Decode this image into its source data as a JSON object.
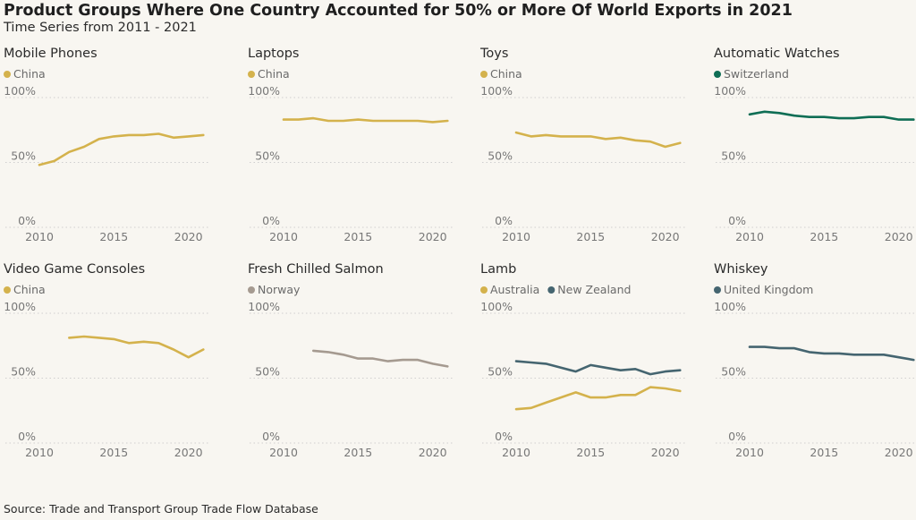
{
  "title": "Product Groups Where One Country Accounted for 50% or More Of World Exports in 2021",
  "subtitle": "Time Series from 2011 - 2021",
  "source": "Source: Trade and Transport Group Trade Flow Database",
  "colors": {
    "China": "#d4b24c",
    "Switzerland": "#0f6e55",
    "Norway": "#a59a90",
    "Australia": "#d4b24c",
    "New Zealand": "#456570",
    "United Kingdom": "#456570"
  },
  "chart_data": [
    {
      "type": "line",
      "title": "Mobile Phones",
      "ylim": [
        0,
        100
      ],
      "yticks": [
        "0%",
        "50%",
        "100%"
      ],
      "xticks": [
        "2010",
        "2015",
        "2020"
      ],
      "grid": "horizontal dotted",
      "legend": "top-left",
      "series": [
        {
          "name": "China",
          "x": [
            2010,
            2011,
            2012,
            2013,
            2014,
            2015,
            2016,
            2017,
            2018,
            2019,
            2020,
            2021
          ],
          "values": [
            46,
            49,
            56,
            60,
            66,
            68,
            69,
            69,
            70,
            67,
            68,
            69
          ]
        }
      ]
    },
    {
      "type": "line",
      "title": "Laptops",
      "ylim": [
        0,
        100
      ],
      "yticks": [
        "0%",
        "50%",
        "100%"
      ],
      "xticks": [
        "2010",
        "2015",
        "2020"
      ],
      "grid": "horizontal dotted",
      "legend": "top-left",
      "series": [
        {
          "name": "China",
          "x": [
            2010,
            2011,
            2012,
            2013,
            2014,
            2015,
            2016,
            2017,
            2018,
            2019,
            2020,
            2021
          ],
          "values": [
            81,
            81,
            82,
            80,
            80,
            81,
            80,
            80,
            80,
            80,
            79,
            80
          ]
        }
      ]
    },
    {
      "type": "line",
      "title": "Toys",
      "ylim": [
        0,
        100
      ],
      "yticks": [
        "0%",
        "50%",
        "100%"
      ],
      "xticks": [
        "2010",
        "2015",
        "2020"
      ],
      "grid": "horizontal dotted",
      "legend": "top-left",
      "series": [
        {
          "name": "China",
          "x": [
            2010,
            2011,
            2012,
            2013,
            2014,
            2015,
            2016,
            2017,
            2018,
            2019,
            2020,
            2021
          ],
          "values": [
            71,
            68,
            69,
            68,
            68,
            68,
            66,
            67,
            65,
            64,
            60,
            63
          ]
        }
      ]
    },
    {
      "type": "line",
      "title": "Automatic Watches",
      "ylim": [
        0,
        100
      ],
      "yticks": [
        "0%",
        "50%",
        "100%"
      ],
      "xticks": [
        "2010",
        "2015",
        "2020"
      ],
      "grid": "horizontal dotted",
      "legend": "top-left",
      "series": [
        {
          "name": "Switzerland",
          "x": [
            2010,
            2011,
            2012,
            2013,
            2014,
            2015,
            2016,
            2017,
            2018,
            2019,
            2020,
            2021
          ],
          "values": [
            85,
            87,
            86,
            84,
            83,
            83,
            82,
            82,
            83,
            83,
            81,
            81
          ]
        }
      ]
    },
    {
      "type": "line",
      "title": "Video Game Consoles",
      "ylim": [
        0,
        100
      ],
      "yticks": [
        "0%",
        "50%",
        "100%"
      ],
      "xticks": [
        "2010",
        "2015",
        "2020"
      ],
      "grid": "horizontal dotted",
      "legend": "top-left",
      "series": [
        {
          "name": "China",
          "x": [
            2012,
            2013,
            2014,
            2015,
            2016,
            2017,
            2018,
            2019,
            2020,
            2021
          ],
          "values": [
            79,
            80,
            79,
            78,
            75,
            76,
            75,
            70,
            64,
            70
          ]
        }
      ]
    },
    {
      "type": "line",
      "title": "Fresh Chilled Salmon",
      "ylim": [
        0,
        100
      ],
      "yticks": [
        "0%",
        "50%",
        "100%"
      ],
      "xticks": [
        "2010",
        "2015",
        "2020"
      ],
      "grid": "horizontal dotted",
      "legend": "top-left",
      "series": [
        {
          "name": "Norway",
          "x": [
            2012,
            2013,
            2014,
            2015,
            2016,
            2017,
            2018,
            2019,
            2020,
            2021
          ],
          "values": [
            69,
            68,
            66,
            63,
            63,
            61,
            62,
            62,
            59,
            57
          ]
        }
      ]
    },
    {
      "type": "line",
      "title": "Lamb",
      "ylim": [
        0,
        100
      ],
      "yticks": [
        "0%",
        "50%",
        "100%"
      ],
      "xticks": [
        "2010",
        "2015",
        "2020"
      ],
      "grid": "horizontal dotted",
      "legend": "top-left",
      "series": [
        {
          "name": "Australia",
          "x": [
            2010,
            2011,
            2012,
            2013,
            2014,
            2015,
            2016,
            2017,
            2018,
            2019,
            2020,
            2021
          ],
          "values": [
            24,
            25,
            29,
            33,
            37,
            33,
            33,
            35,
            35,
            41,
            40,
            38
          ]
        },
        {
          "name": "New Zealand",
          "x": [
            2010,
            2011,
            2012,
            2013,
            2014,
            2015,
            2016,
            2017,
            2018,
            2019,
            2020,
            2021
          ],
          "values": [
            61,
            60,
            59,
            56,
            53,
            58,
            56,
            54,
            55,
            51,
            53,
            54
          ]
        }
      ]
    },
    {
      "type": "line",
      "title": "Whiskey",
      "ylim": [
        0,
        100
      ],
      "yticks": [
        "0%",
        "50%",
        "100%"
      ],
      "xticks": [
        "2010",
        "2015",
        "2020"
      ],
      "grid": "horizontal dotted",
      "legend": "top-left",
      "series": [
        {
          "name": "United Kingdom",
          "x": [
            2010,
            2011,
            2012,
            2013,
            2014,
            2015,
            2016,
            2017,
            2018,
            2019,
            2020,
            2021
          ],
          "values": [
            72,
            72,
            71,
            71,
            68,
            67,
            67,
            66,
            66,
            66,
            64,
            62
          ]
        }
      ]
    }
  ]
}
